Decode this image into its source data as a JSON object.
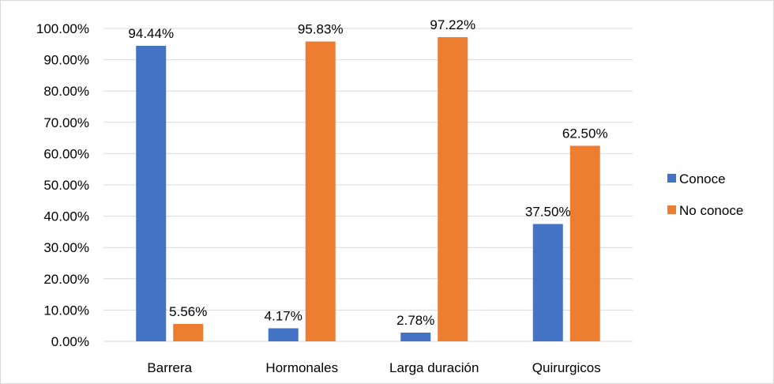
{
  "chart_data": {
    "type": "bar",
    "categories": [
      "Barrera",
      "Hormonales",
      "Larga duración",
      "Quirurgicos"
    ],
    "series": [
      {
        "name": "Conoce",
        "values": [
          94.44,
          4.17,
          2.78,
          37.5
        ],
        "labels": [
          "94.44%",
          "4.17%",
          "2.78%",
          "37.50%"
        ],
        "color": "#4472C4"
      },
      {
        "name": "No conoce",
        "values": [
          5.56,
          95.83,
          97.22,
          62.5
        ],
        "labels": [
          "5.56%",
          "95.83%",
          "97.22%",
          "62.50%"
        ],
        "color": "#ED7D31"
      }
    ],
    "y_ticks": [
      "0.00%",
      "10.00%",
      "20.00%",
      "30.00%",
      "40.00%",
      "50.00%",
      "60.00%",
      "70.00%",
      "80.00%",
      "90.00%",
      "100.00%"
    ],
    "ylim": [
      0,
      100
    ],
    "grid": true,
    "legend_position": "right"
  }
}
